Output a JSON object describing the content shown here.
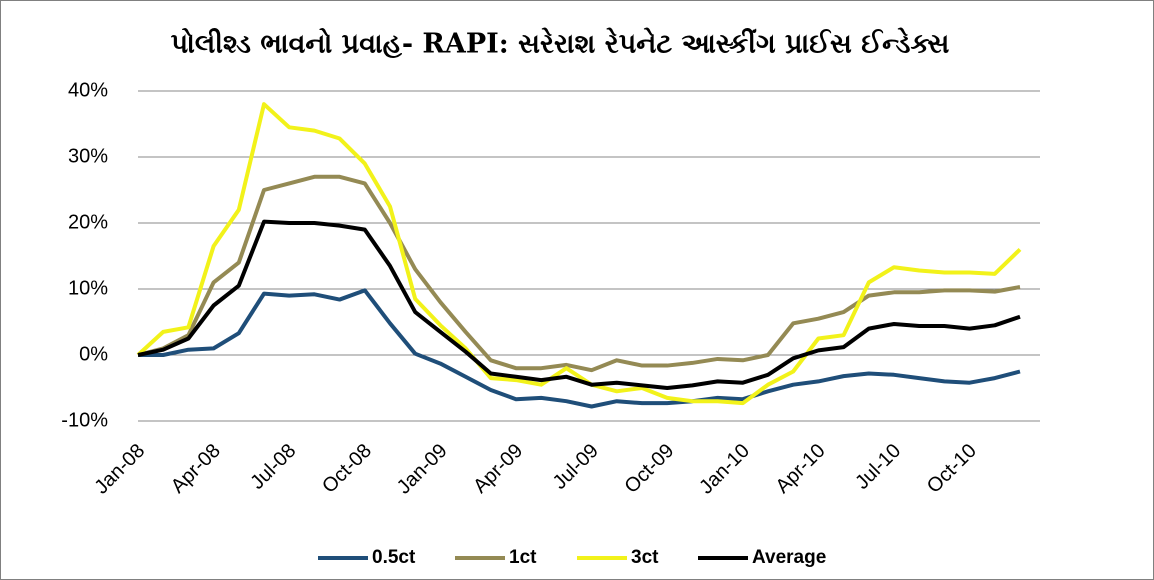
{
  "chart_data": {
    "type": "line",
    "title": "પોલીશ્ડ ભાવનો પ્રવાહ- RAPI:  સરેરાશ રેપનેટ આસ્કીંગ પ્રાઈસ ઈન્ડેક્સ",
    "categories": [
      "Jan-08",
      null,
      null,
      "Apr-08",
      null,
      null,
      "Jul-08",
      null,
      null,
      "Oct-08",
      null,
      null,
      "Jan-09",
      null,
      null,
      "Apr-09",
      null,
      null,
      "Jul-09",
      null,
      null,
      "Oct-09",
      null,
      null,
      "Jan-10",
      null,
      null,
      "Apr-10",
      null,
      null,
      "Jul-10",
      null,
      null,
      "Oct-10",
      null,
      null
    ],
    "series": [
      {
        "name": "0.5ct",
        "color": "#1f4e79",
        "values": [
          0,
          0,
          0.8,
          1,
          3.3,
          9.3,
          9,
          9.2,
          8.4,
          9.8,
          4.8,
          0.2,
          -1.3,
          -3.3,
          -5.3,
          -6.7,
          -6.5,
          -7,
          -7.8,
          -7,
          -7.3,
          -7.3,
          -7,
          -6.5,
          -6.7,
          -5.5,
          -4.5,
          -4,
          -3.2,
          -2.8,
          -3,
          -3.5,
          -4,
          -4.2,
          -3.5,
          -2.5
        ]
      },
      {
        "name": "1ct",
        "color": "#948a54",
        "values": [
          0,
          1,
          3,
          11,
          14,
          25,
          26,
          27,
          27,
          26,
          20,
          13,
          8,
          3.5,
          -0.8,
          -2,
          -2,
          -1.5,
          -2.3,
          -0.8,
          -1.6,
          -1.6,
          -1.2,
          -0.6,
          -0.8,
          0,
          4.8,
          5.5,
          6.5,
          9,
          9.5,
          9.5,
          9.8,
          9.8,
          9.6,
          10.3
        ]
      },
      {
        "name": "3ct",
        "color": "#f2f21a",
        "values": [
          0,
          3.5,
          4.2,
          16.5,
          22,
          38,
          34.5,
          34,
          32.8,
          29,
          22.5,
          8.5,
          4.5,
          1,
          -3.5,
          -3.8,
          -4.5,
          -2,
          -4.5,
          -5.5,
          -5,
          -6.5,
          -7,
          -7,
          -7.3,
          -4.5,
          -2.5,
          2.5,
          3,
          11,
          13.3,
          12.8,
          12.5,
          12.5,
          12.3,
          16
        ]
      },
      {
        "name": "Average",
        "color": "#000000",
        "values": [
          0,
          0.8,
          2.5,
          7.5,
          10.5,
          20.2,
          20,
          20,
          19.6,
          19,
          13.5,
          6.5,
          3.5,
          0.5,
          -2.8,
          -3.3,
          -3.8,
          -3.3,
          -4.5,
          -4.2,
          -4.6,
          -5,
          -4.6,
          -4,
          -4.2,
          -3,
          -0.5,
          0.7,
          1.2,
          4,
          4.7,
          4.4,
          4.4,
          4,
          4.5,
          5.8
        ]
      }
    ],
    "ylim": [
      -10,
      40
    ],
    "yticks": [
      {
        "value": -10,
        "label": "-10%"
      },
      {
        "value": 0,
        "label": "0%"
      },
      {
        "value": 10,
        "label": "10%"
      },
      {
        "value": 20,
        "label": "20%"
      },
      {
        "value": 30,
        "label": "30%"
      },
      {
        "value": 40,
        "label": "40%"
      }
    ],
    "grid": true,
    "legend": "bottom"
  }
}
